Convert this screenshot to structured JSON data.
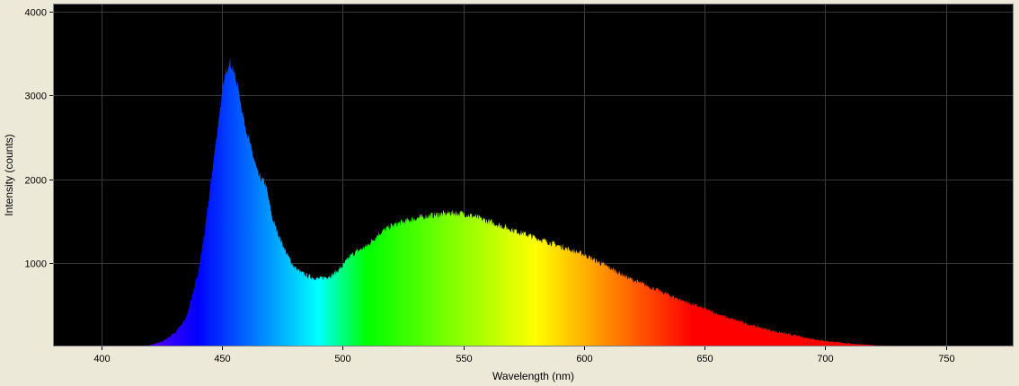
{
  "chart_data": {
    "type": "area",
    "xlabel": "Wavelength (nm)",
    "ylabel": "Intensity (counts)",
    "xlim": [
      380,
      778
    ],
    "ylim": [
      0,
      4100
    ],
    "x_ticks": [
      "400",
      "450",
      "500",
      "550",
      "600",
      "650",
      "700",
      "750"
    ],
    "y_ticks": [
      "1000",
      "2000",
      "3000",
      "4000"
    ],
    "grid": true,
    "background_color": "#000000",
    "grid_color": "#3a3a3a",
    "fill": "visible-spectrum gradient (wavelength to color)",
    "x": [
      410,
      415,
      420,
      425,
      430,
      435,
      440,
      443,
      446,
      449,
      451,
      453,
      455,
      457,
      459,
      462,
      465,
      468,
      471,
      474,
      477,
      480,
      483,
      486,
      490,
      493,
      496,
      500,
      503,
      506,
      510,
      515,
      520,
      525,
      530,
      535,
      540,
      545,
      550,
      555,
      560,
      570,
      580,
      590,
      600,
      610,
      620,
      630,
      640,
      650,
      660,
      670,
      680,
      690,
      700,
      710,
      720,
      730,
      735,
      740
    ],
    "y": [
      0,
      4,
      15,
      55,
      150,
      330,
      850,
      1400,
      2100,
      2800,
      3200,
      3420,
      3280,
      3050,
      2720,
      2380,
      2050,
      1950,
      1520,
      1300,
      1100,
      950,
      880,
      840,
      810,
      830,
      860,
      960,
      1080,
      1140,
      1200,
      1350,
      1440,
      1490,
      1530,
      1560,
      1580,
      1600,
      1590,
      1550,
      1500,
      1400,
      1300,
      1200,
      1100,
      950,
      800,
      680,
      560,
      450,
      340,
      250,
      175,
      115,
      65,
      35,
      15,
      5,
      2,
      0
    ]
  }
}
